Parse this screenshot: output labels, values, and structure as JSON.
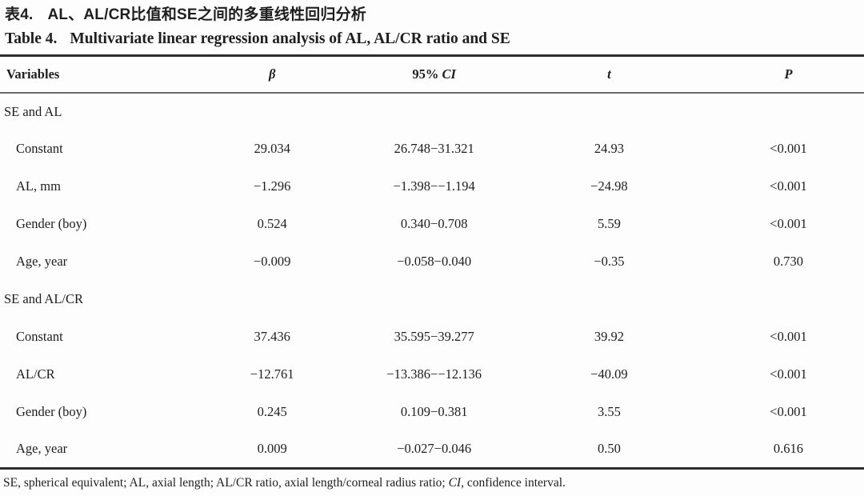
{
  "page": {
    "background": "#fdfdfd",
    "text_color": "#1e1e1e",
    "rule_dark_color": "#2e2e2e",
    "rule_gray_color": "#6a6a6a"
  },
  "title_zh": {
    "label": "表4.",
    "text": "AL、AL/CR比值和SE之间的多重线性回归分析"
  },
  "title_en": {
    "label": "Table 4.",
    "text": "Multivariate linear regression analysis of AL, AL/CR ratio and SE"
  },
  "table": {
    "header": [
      {
        "upright": "Variables",
        "italic": ""
      },
      {
        "upright": "",
        "italic": "β"
      },
      {
        "upright": "95% ",
        "italic": "CI"
      },
      {
        "upright": "",
        "italic": "t"
      },
      {
        "upright": "",
        "italic": "P"
      }
    ],
    "rows": [
      {
        "type": "section",
        "variable": "SE and AL",
        "beta": "",
        "ci": "",
        "t": "",
        "p": ""
      },
      {
        "type": "data",
        "variable": "Constant",
        "beta": "29.034",
        "ci": "26.748−31.321",
        "t": "24.93",
        "p": "<0.001"
      },
      {
        "type": "data",
        "variable": "AL, mm",
        "beta": "−1.296",
        "ci": "−1.398−−1.194",
        "t": "−24.98",
        "p": "<0.001"
      },
      {
        "type": "data",
        "variable": "Gender (boy)",
        "beta": "0.524",
        "ci": "0.340−0.708",
        "t": "5.59",
        "p": "<0.001"
      },
      {
        "type": "data",
        "variable": "Age, year",
        "beta": "−0.009",
        "ci": "−0.058−0.040",
        "t": "−0.35",
        "p": "0.730"
      },
      {
        "type": "section",
        "variable": "SE and AL/CR",
        "beta": "",
        "ci": "",
        "t": "",
        "p": ""
      },
      {
        "type": "data",
        "variable": "Constant",
        "beta": "37.436",
        "ci": "35.595−39.277",
        "t": "39.92",
        "p": "<0.001"
      },
      {
        "type": "data",
        "variable": "AL/CR",
        "beta": "−12.761",
        "ci": "−13.386−−12.136",
        "t": "−40.09",
        "p": "<0.001"
      },
      {
        "type": "data",
        "variable": "Gender (boy)",
        "beta": "0.245",
        "ci": "0.109−0.381",
        "t": "3.55",
        "p": "<0.001"
      },
      {
        "type": "data",
        "variable": "Age, year",
        "beta": "0.009",
        "ci": "−0.027−0.046",
        "t": "0.50",
        "p": "0.616"
      }
    ]
  },
  "footnote": {
    "parts": [
      {
        "text": "SE, spherical equivalent; AL, axial length; AL/CR ratio, axial length/corneal radius ratio; ",
        "italic": false
      },
      {
        "text": "CI",
        "italic": true
      },
      {
        "text": ", confidence interval.",
        "italic": false
      }
    ]
  }
}
